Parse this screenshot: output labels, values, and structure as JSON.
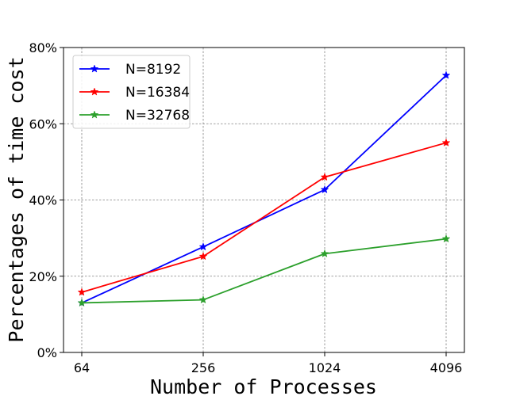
{
  "chart_data": {
    "type": "line",
    "xlabel": "Number of Processes",
    "ylabel": "Percentages of time cost",
    "categories": [
      "64",
      "256",
      "1024",
      "4096"
    ],
    "y_ticks": [
      "0%",
      "20%",
      "40%",
      "60%",
      "80%"
    ],
    "ylim": [
      0,
      80
    ],
    "grid": true,
    "legend_position": "upper-left",
    "series": [
      {
        "name": "N=8192",
        "color": "#0000ff",
        "marker": "star",
        "values": [
          13.0,
          27.7,
          42.7,
          72.7
        ]
      },
      {
        "name": "N=16384",
        "color": "#ff0000",
        "marker": "star",
        "values": [
          15.8,
          25.2,
          46.0,
          55.0
        ]
      },
      {
        "name": "N=32768",
        "color": "#2ca02c",
        "marker": "star",
        "values": [
          13.0,
          13.8,
          25.9,
          29.8
        ]
      }
    ]
  }
}
